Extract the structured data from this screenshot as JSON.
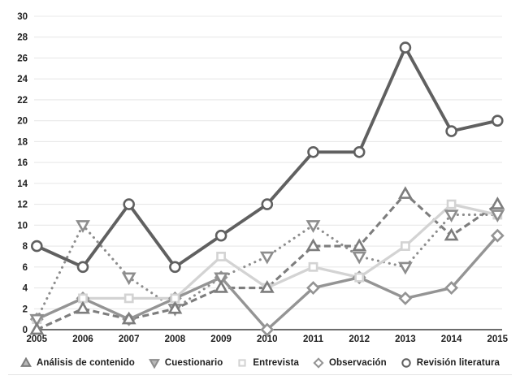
{
  "chart_data": {
    "type": "line",
    "title": "",
    "xlabel": "",
    "ylabel": "",
    "x_labels": [
      "2005",
      "2006",
      "2007",
      "2008",
      "2009",
      "2010",
      "2011",
      "2012",
      "2013",
      "2014",
      "2015"
    ],
    "ylim": [
      0,
      30
    ],
    "ytick_step": 2,
    "grid": "horizontal-only",
    "legend_position": "bottom-center",
    "background_color": "#ffffff",
    "gridline_color": "#e8e8e8",
    "axis_line_color": "#3c3c3c",
    "tick_label_color": "#202020",
    "series": [
      {
        "name": "Análisis de contenido",
        "marker": "triangle-up",
        "line_style": "dashed",
        "color": "#7d7d7d",
        "values": [
          0,
          2,
          1,
          2,
          4,
          4,
          8,
          8,
          13,
          9,
          12
        ]
      },
      {
        "name": "Cuestionario",
        "marker": "triangle-down",
        "line_style": "dotted",
        "color": "#8d8d8d",
        "values": [
          1,
          10,
          5,
          2,
          5,
          7,
          10,
          7,
          6,
          11,
          11
        ]
      },
      {
        "name": "Entrevista",
        "marker": "square",
        "line_style": "solid",
        "color": "#d3d3d3",
        "values": [
          1,
          3,
          3,
          3,
          7,
          4,
          6,
          5,
          8,
          12,
          11
        ]
      },
      {
        "name": "Observación",
        "marker": "diamond",
        "line_style": "solid",
        "color": "#949494",
        "values": [
          1,
          3,
          1,
          3,
          5,
          0,
          4,
          5,
          3,
          4,
          9
        ]
      },
      {
        "name": "Revisión literatura",
        "marker": "circle",
        "line_style": "solid",
        "color": "#606060",
        "values": [
          8,
          6,
          12,
          6,
          9,
          12,
          17,
          17,
          27,
          19,
          20
        ]
      }
    ]
  }
}
